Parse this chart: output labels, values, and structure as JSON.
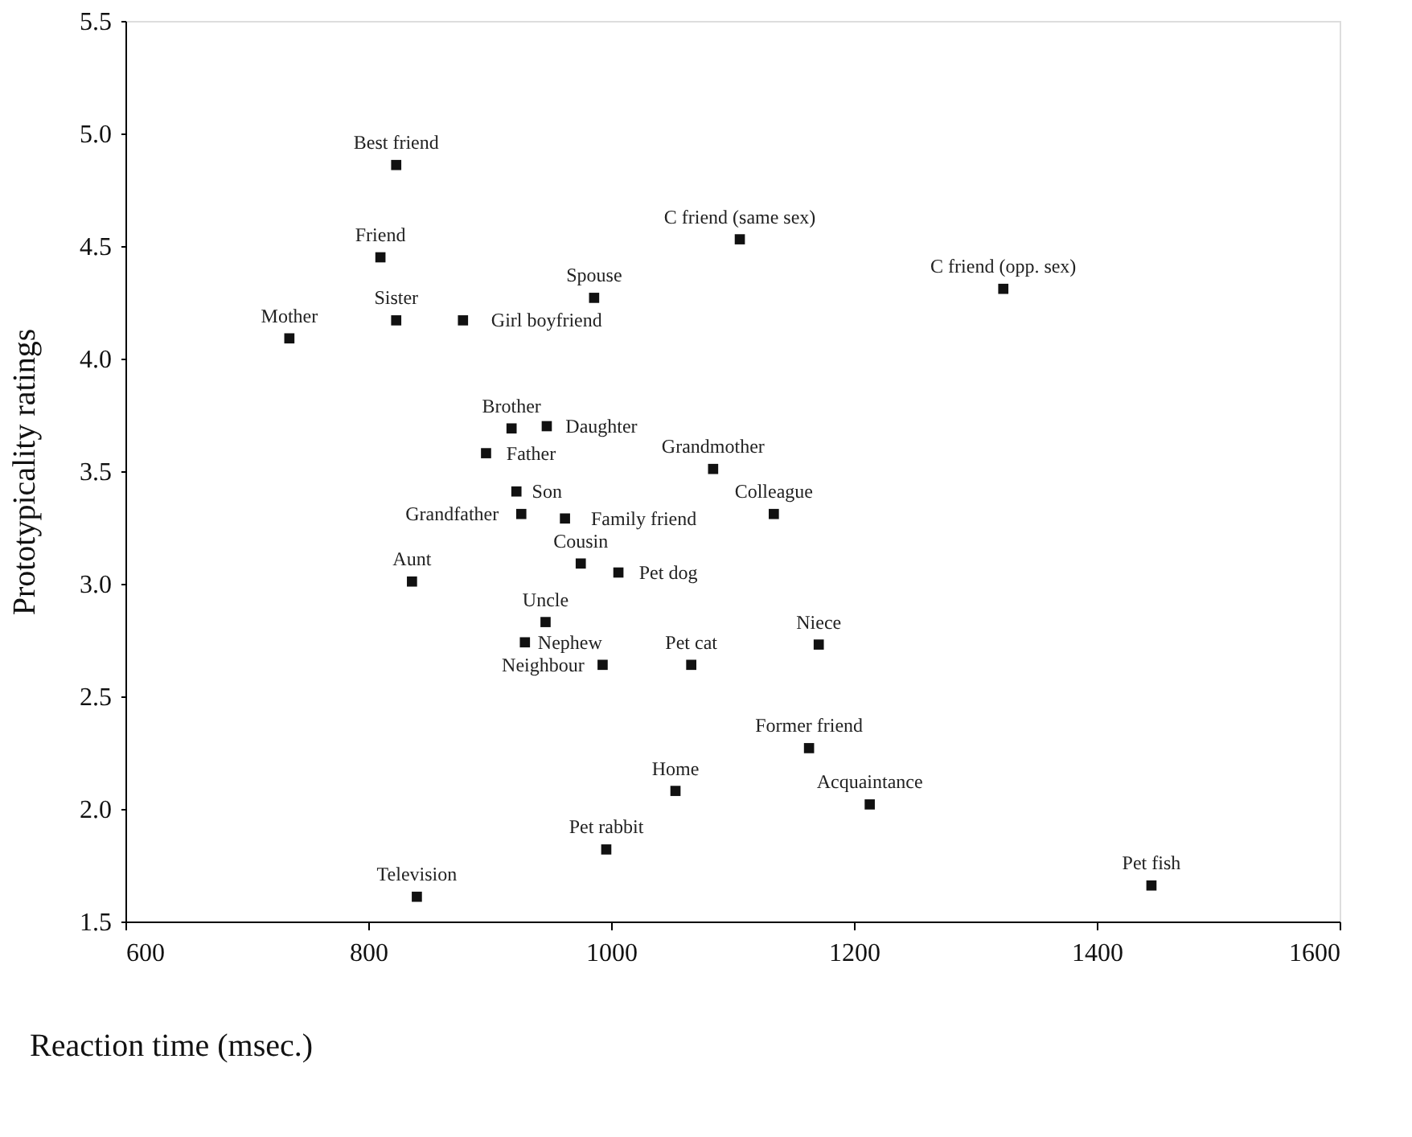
{
  "chart_data": {
    "type": "scatter",
    "xlabel": "Reaction time (msec.)",
    "ylabel": "Prototypicality ratings",
    "x": [
      823,
      810,
      823,
      878,
      735,
      986,
      1106,
      1323,
      918,
      947,
      897,
      922,
      926,
      962,
      1084,
      1134,
      975,
      1006,
      836,
      946,
      929,
      993,
      1066,
      1171,
      1163,
      1053,
      1213,
      996,
      1445,
      840
    ],
    "values": [
      4.86,
      4.45,
      4.17,
      4.17,
      4.09,
      4.27,
      4.53,
      4.31,
      3.69,
      3.7,
      3.58,
      3.41,
      3.31,
      3.29,
      3.51,
      3.31,
      3.09,
      3.05,
      3.01,
      2.83,
      2.74,
      2.64,
      2.64,
      2.73,
      2.27,
      2.08,
      2.02,
      1.82,
      1.66,
      1.61
    ],
    "color": "#111111",
    "marker": "square",
    "xlim": [
      600,
      1600
    ],
    "xticks": [
      600,
      800,
      1000,
      1200,
      1400,
      1600
    ],
    "ylim": [
      1.5,
      5.5
    ],
    "yticks": [
      {
        "value": 1.5,
        "label": "1.5"
      },
      {
        "value": 2,
        "label": "2.0"
      },
      {
        "value": 2.5,
        "label": "2.5"
      },
      {
        "value": 3,
        "label": "3.0"
      },
      {
        "value": 3.5,
        "label": "3.5"
      },
      {
        "value": 4,
        "label": "4.0"
      },
      {
        "value": 4.5,
        "label": "4.5"
      },
      {
        "value": 5,
        "label": "5.0"
      },
      {
        "value": 5.5,
        "label": "5.5"
      }
    ],
    "grid": false,
    "annotations": [
      {
        "text": "Best friend",
        "x": 823,
        "y": 4.86
      },
      {
        "text": "Friend",
        "x": 810,
        "y": 4.45
      },
      {
        "text": "Sister",
        "x": 823,
        "y": 4.17
      },
      {
        "text": "Girl boyfriend",
        "x": 878,
        "y": 4.17
      },
      {
        "text": "Mother",
        "x": 735,
        "y": 4.09
      },
      {
        "text": "Spouse",
        "x": 986,
        "y": 4.27
      },
      {
        "text": "C friend (same sex)",
        "x": 1106,
        "y": 4.53
      },
      {
        "text": "C friend (opp. sex)",
        "x": 1323,
        "y": 4.31
      },
      {
        "text": "Brother",
        "x": 918,
        "y": 3.69
      },
      {
        "text": "Daughter",
        "x": 947,
        "y": 3.7
      },
      {
        "text": "Father",
        "x": 897,
        "y": 3.58
      },
      {
        "text": "Son",
        "x": 922,
        "y": 3.41
      },
      {
        "text": "Grandfather",
        "x": 926,
        "y": 3.31
      },
      {
        "text": "Family friend",
        "x": 962,
        "y": 3.29
      },
      {
        "text": "Grandmother",
        "x": 1084,
        "y": 3.51
      },
      {
        "text": "Colleague",
        "x": 1134,
        "y": 3.31
      },
      {
        "text": "Cousin",
        "x": 975,
        "y": 3.09
      },
      {
        "text": "Pet dog",
        "x": 1006,
        "y": 3.05
      },
      {
        "text": "Aunt",
        "x": 836,
        "y": 3.01
      },
      {
        "text": "Uncle",
        "x": 946,
        "y": 2.83
      },
      {
        "text": "Nephew",
        "x": 929,
        "y": 2.74
      },
      {
        "text": "Neighbour",
        "x": 993,
        "y": 2.64
      },
      {
        "text": "Pet cat",
        "x": 1066,
        "y": 2.64
      },
      {
        "text": "Niece",
        "x": 1171,
        "y": 2.73
      },
      {
        "text": "Former friend",
        "x": 1163,
        "y": 2.27
      },
      {
        "text": "Home",
        "x": 1053,
        "y": 2.08
      },
      {
        "text": "Acquaintance",
        "x": 1213,
        "y": 2.02
      },
      {
        "text": "Pet rabbit",
        "x": 996,
        "y": 1.82
      },
      {
        "text": "Pet fish",
        "x": 1445,
        "y": 1.66
      },
      {
        "text": "Television",
        "x": 840,
        "y": 1.61
      }
    ]
  }
}
